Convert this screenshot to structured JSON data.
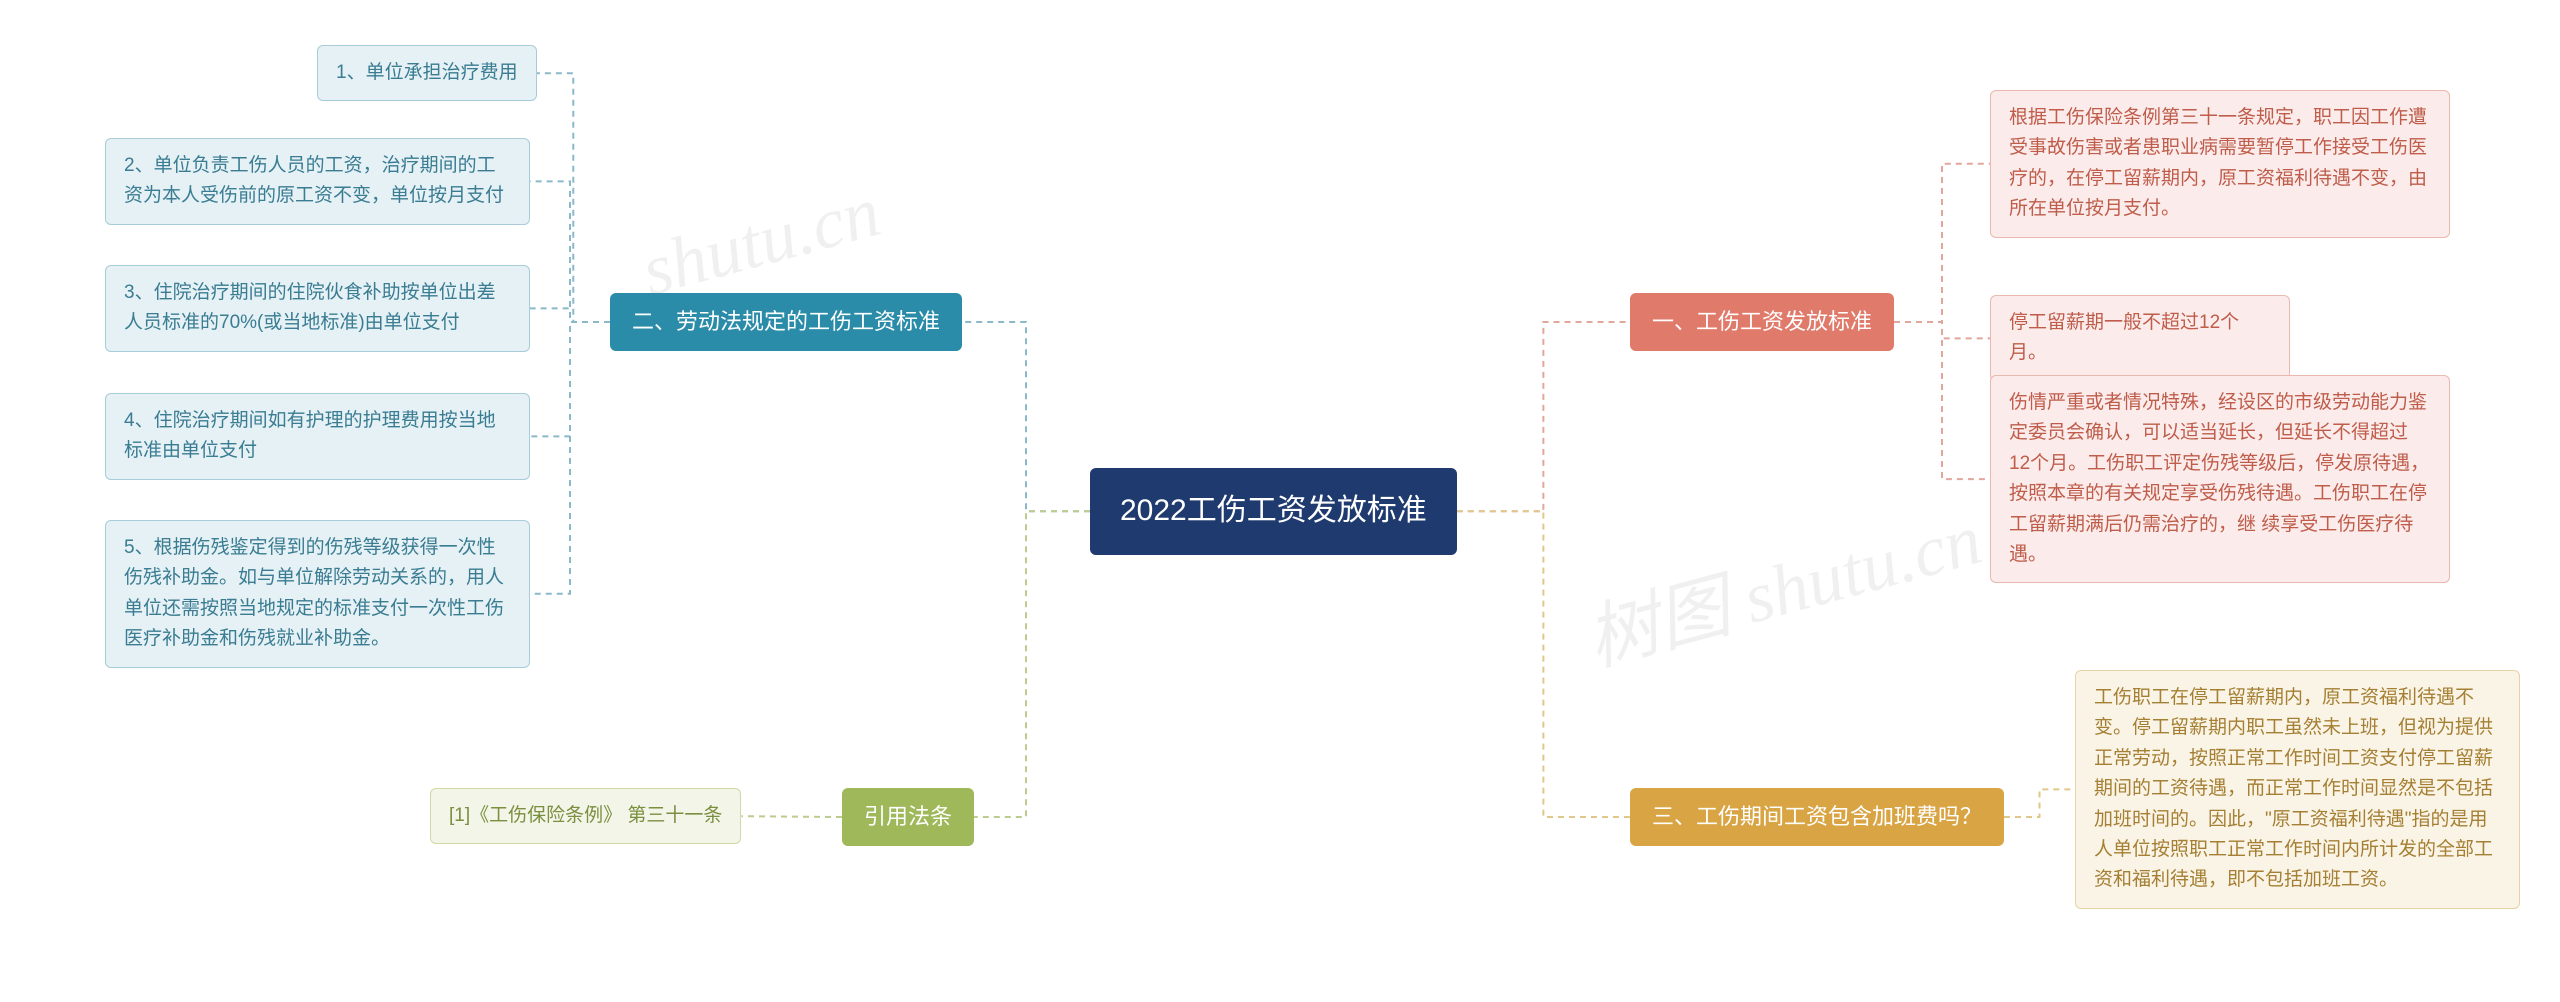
{
  "center": {
    "label": "2022工伤工资发放标准",
    "bg": "#1f3a6e",
    "fg": "#ffffff"
  },
  "branches": {
    "b1": {
      "label": "一、工伤工资发放标准",
      "bg": "#e07a6a",
      "fg": "#ffffff",
      "leaf_bg": "#fbeceb",
      "leaf_fg": "#bf5c4a",
      "leaf_border": "#e9b8af",
      "conn": "#e2a79c",
      "leaves": {
        "l1": "根据工伤保险条例第三十一条规定，职工因工作遭受事故伤害或者患职业病需要暂停工作接受工伤医疗的，在停工留薪期内，原工资福利待遇不变，由所在单位按月支付。",
        "l2": "停工留薪期一般不超过12个月。",
        "l3": "伤情严重或者情况特殊，经设区的市级劳动能力鉴定委员会确认，可以适当延长，但延长不得超过 12个月。工伤职工评定伤残等级后，停发原待遇，按照本章的有关规定享受伤残待遇。工伤职工在停工留薪期满后仍需治疗的，继 续享受工伤医疗待遇。"
      }
    },
    "b2": {
      "label": "二、劳动法规定的工伤工资标准",
      "bg": "#2a8ca8",
      "fg": "#ffffff",
      "leaf_bg": "#e5f1f5",
      "leaf_fg": "#3a7c92",
      "leaf_border": "#a8ccd8",
      "conn": "#8bb9c8",
      "leaves": {
        "l1": "1、单位承担治疗费用",
        "l2": "2、单位负责工伤人员的工资，治疗期间的工资为本人受伤前的原工资不变，单位按月支付",
        "l3": "3、住院治疗期间的住院伙食补助按单位出差人员标准的70%(或当地标准)由单位支付",
        "l4": "4、住院治疗期间如有护理的护理费用按当地标准由单位支付",
        "l5": "5、根据伤残鉴定得到的伤残等级获得一次性伤残补助金。如与单位解除劳动关系的，用人单位还需按照当地规定的标准支付一次性工伤医疗补助金和伤残就业补助金。"
      }
    },
    "b3": {
      "label": "三、工伤期间工资包含加班费吗？",
      "bg": "#d9a443",
      "fg": "#ffffff",
      "leaf_bg": "#faf4e6",
      "leaf_fg": "#a57f33",
      "leaf_border": "#e6d2a5",
      "conn": "#e0c78a",
      "leaves": {
        "l1": "工伤职工在停工留薪期内，原工资福利待遇不变。停工留薪期内职工虽然未上班，但视为提供正常劳动，按照正常工作时间工资支付停工留薪期间的工资待遇，而正常工作时间显然是不包括加班时间的。因此，\"原工资福利待遇\"指的是用人单位按照职工正常工作时间内所计发的全部工资和福利待遇，即不包括加班工资。"
      }
    },
    "b4": {
      "label": "引用法条",
      "bg": "#9eb85a",
      "fg": "#ffffff",
      "leaf_bg": "#f2f5e8",
      "leaf_fg": "#7a8f3f",
      "leaf_border": "#cdd9a8",
      "conn": "#bccb8e",
      "leaves": {
        "l1": "[1]《工伤保险条例》 第三十一条"
      }
    }
  },
  "watermarks": [
    "shutu.cn",
    "树图 shutu.cn"
  ]
}
